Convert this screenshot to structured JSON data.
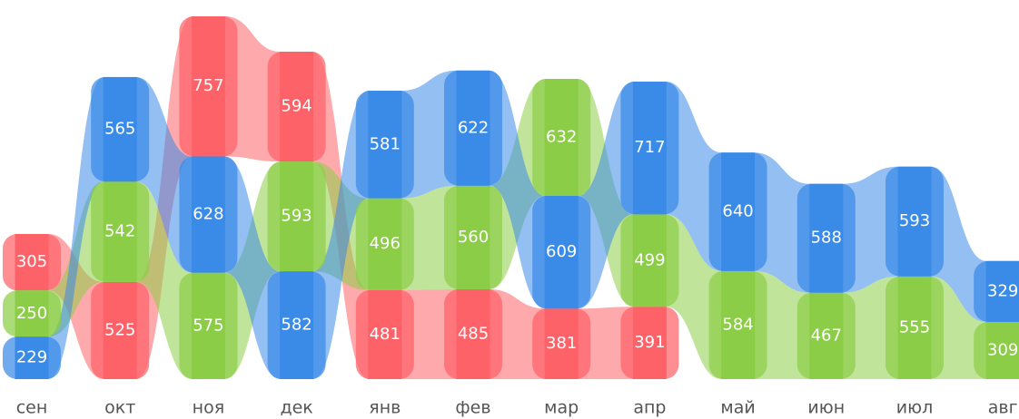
{
  "chart_data": {
    "type": "ribbon",
    "categories": [
      "сен",
      "окт",
      "ноя",
      "дек",
      "янв",
      "фев",
      "мар",
      "апр",
      "май",
      "июн",
      "июл",
      "авг"
    ],
    "series": [
      {
        "color": "#fd6268",
        "values": [
          305,
          525,
          757,
          594,
          481,
          485,
          381,
          391,
          null,
          null,
          null,
          null
        ]
      },
      {
        "color": "#8ccd47",
        "values": [
          250,
          542,
          575,
          593,
          496,
          560,
          632,
          499,
          584,
          467,
          555,
          309
        ]
      },
      {
        "color": "#3a8be8",
        "values": [
          229,
          565,
          628,
          582,
          581,
          622,
          609,
          717,
          640,
          588,
          593,
          329
        ]
      }
    ]
  }
}
